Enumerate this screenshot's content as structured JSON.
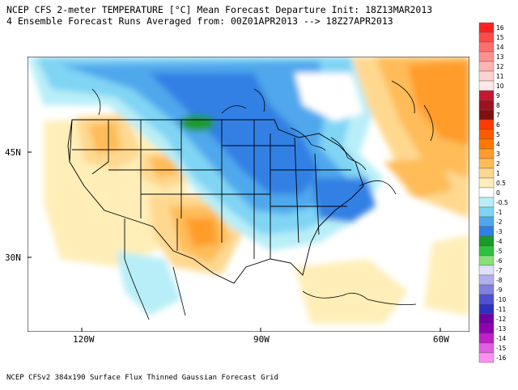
{
  "title_line1": "NCEP CFS 2-meter TEMPERATURE [°C] Mean Forecast Departure Init: 18Z13MAR2013",
  "title_line2": "4 Ensemble Forecast Runs Averaged from: 00Z01APR2013 --> 18Z27APR2013",
  "lat_labels": [
    "45N",
    "30N"
  ],
  "lon_labels": [
    "120W",
    "90W",
    "60W"
  ],
  "footer": "NCEP CFSv2 384x190 Surface Flux Thinned Gaussian Forecast Grid",
  "colorbar": {
    "labels": [
      "16",
      "15",
      "14",
      "13",
      "12",
      "11",
      "10",
      "9",
      "8",
      "7",
      "6",
      "5",
      "4",
      "3",
      "2",
      "1",
      "0.5",
      "0",
      "-0.5",
      "-1",
      "-2",
      "-3",
      "-4",
      "-5",
      "-6",
      "-7",
      "-8",
      "-9",
      "-10",
      "-11",
      "-12",
      "-13",
      "-14",
      "-15",
      "-16"
    ],
    "colors": [
      "#ff2020",
      "#ff4a4a",
      "#ff6e6e",
      "#ff9090",
      "#ffb4b4",
      "#ffd2d2",
      "#ffe8e8",
      "#c81830",
      "#a01020",
      "#801010",
      "#ff3a00",
      "#ff5a00",
      "#ff7800",
      "#ff9c2c",
      "#ffbc58",
      "#ffd890",
      "#ffeeb8",
      "#ffffff",
      "#b8eef8",
      "#80d4f4",
      "#50a8ec",
      "#3080e4",
      "#1a9a28",
      "#30c040",
      "#88e078",
      "#e0e0ff",
      "#b0b0f0",
      "#8080e0",
      "#5050d0",
      "#3030c0",
      "#7000a0",
      "#9000b0",
      "#c020c8",
      "#e060e0",
      "#ff90f0"
    ]
  }
}
